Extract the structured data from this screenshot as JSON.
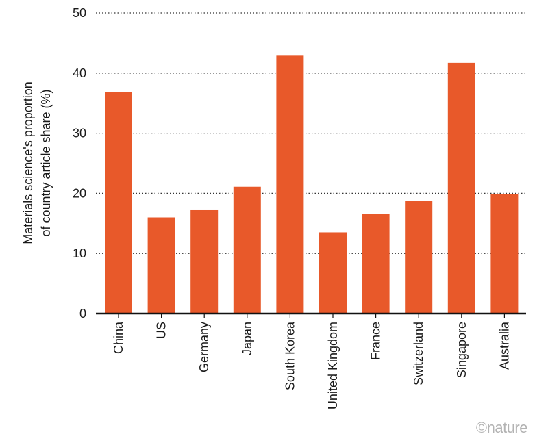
{
  "chart_data": {
    "type": "bar",
    "ylabel": "Materials science's proportion of country article share (%)",
    "ylabel_lines": [
      "Materials science's proportion",
      "of country article share (%)"
    ],
    "xlabel": "",
    "ylim": [
      0,
      50
    ],
    "yticks": [
      0,
      10,
      20,
      30,
      40,
      50
    ],
    "grid": "horizontal dotted",
    "categories": [
      "China",
      "US",
      "Germany",
      "Japan",
      "South Korea",
      "United Kingdom",
      "France",
      "Switzerland",
      "Singapore",
      "Australia"
    ],
    "values": [
      36.8,
      16.0,
      17.2,
      21.1,
      42.9,
      13.5,
      16.6,
      18.7,
      41.7,
      19.9
    ],
    "bar_color": "#e8592a"
  },
  "credit": "©nature"
}
